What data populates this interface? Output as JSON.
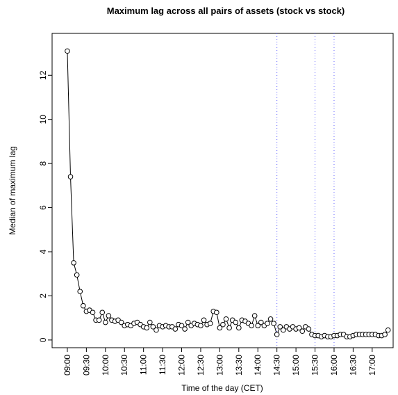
{
  "chart_data": {
    "type": "line",
    "title": "Maximum lag across all pairs of assets (stock vs stock)",
    "xlabel": "Time of the day (CET)",
    "ylabel": "Median of maximum lag",
    "x": [
      "09:00",
      "09:05",
      "09:10",
      "09:15",
      "09:20",
      "09:25",
      "09:30",
      "09:35",
      "09:40",
      "09:45",
      "09:50",
      "09:55",
      "10:00",
      "10:05",
      "10:10",
      "10:15",
      "10:20",
      "10:25",
      "10:30",
      "10:35",
      "10:40",
      "10:45",
      "10:50",
      "10:55",
      "11:00",
      "11:05",
      "11:10",
      "11:15",
      "11:20",
      "11:25",
      "11:30",
      "11:35",
      "11:40",
      "11:45",
      "11:50",
      "11:55",
      "12:00",
      "12:05",
      "12:10",
      "12:15",
      "12:20",
      "12:25",
      "12:30",
      "12:35",
      "12:40",
      "12:45",
      "12:50",
      "12:55",
      "13:00",
      "13:05",
      "13:10",
      "13:15",
      "13:20",
      "13:25",
      "13:30",
      "13:35",
      "13:40",
      "13:45",
      "13:50",
      "13:55",
      "14:00",
      "14:05",
      "14:10",
      "14:15",
      "14:20",
      "14:25",
      "14:30",
      "14:35",
      "14:40",
      "14:45",
      "14:50",
      "14:55",
      "15:00",
      "15:05",
      "15:10",
      "15:15",
      "15:20",
      "15:25",
      "15:30",
      "15:35",
      "15:40",
      "15:45",
      "15:50",
      "15:55",
      "16:00",
      "16:05",
      "16:10",
      "16:15",
      "16:20",
      "16:25",
      "16:30",
      "16:35",
      "16:40",
      "16:45",
      "16:50",
      "16:55",
      "17:00",
      "17:05",
      "17:10",
      "17:15",
      "17:20",
      "17:25"
    ],
    "values": [
      13.1,
      7.4,
      3.5,
      2.95,
      2.2,
      1.55,
      1.3,
      1.35,
      1.25,
      0.9,
      0.9,
      1.25,
      0.8,
      1.1,
      0.9,
      0.85,
      0.9,
      0.8,
      0.65,
      0.7,
      0.65,
      0.75,
      0.8,
      0.7,
      0.6,
      0.55,
      0.8,
      0.6,
      0.45,
      0.65,
      0.6,
      0.65,
      0.6,
      0.6,
      0.5,
      0.7,
      0.65,
      0.5,
      0.8,
      0.65,
      0.75,
      0.7,
      0.65,
      0.9,
      0.7,
      0.75,
      1.3,
      1.25,
      0.55,
      0.7,
      0.95,
      0.55,
      0.9,
      0.8,
      0.55,
      0.9,
      0.85,
      0.75,
      0.65,
      1.1,
      0.65,
      0.8,
      0.65,
      0.75,
      0.95,
      0.75,
      0.25,
      0.6,
      0.45,
      0.6,
      0.5,
      0.6,
      0.5,
      0.55,
      0.4,
      0.6,
      0.5,
      0.25,
      0.2,
      0.2,
      0.15,
      0.2,
      0.15,
      0.15,
      0.2,
      0.2,
      0.25,
      0.25,
      0.15,
      0.15,
      0.2,
      0.25,
      0.25,
      0.25,
      0.25,
      0.25,
      0.25,
      0.25,
      0.2,
      0.2,
      0.25,
      0.45
    ],
    "color": "#000000",
    "xlim": [
      "08:36",
      "17:33"
    ],
    "xticks": [
      "09:00",
      "09:30",
      "10:00",
      "10:30",
      "11:00",
      "11:30",
      "12:00",
      "12:30",
      "13:00",
      "13:30",
      "14:00",
      "14:30",
      "15:00",
      "15:30",
      "16:00",
      "16:30",
      "17:00"
    ],
    "ylim": [
      -0.35,
      13.9
    ],
    "yticks": [
      0,
      2,
      4,
      6,
      8,
      10,
      12
    ],
    "vlines": [
      "14:30",
      "15:30",
      "16:00"
    ],
    "vline_color": "#6666ff"
  }
}
